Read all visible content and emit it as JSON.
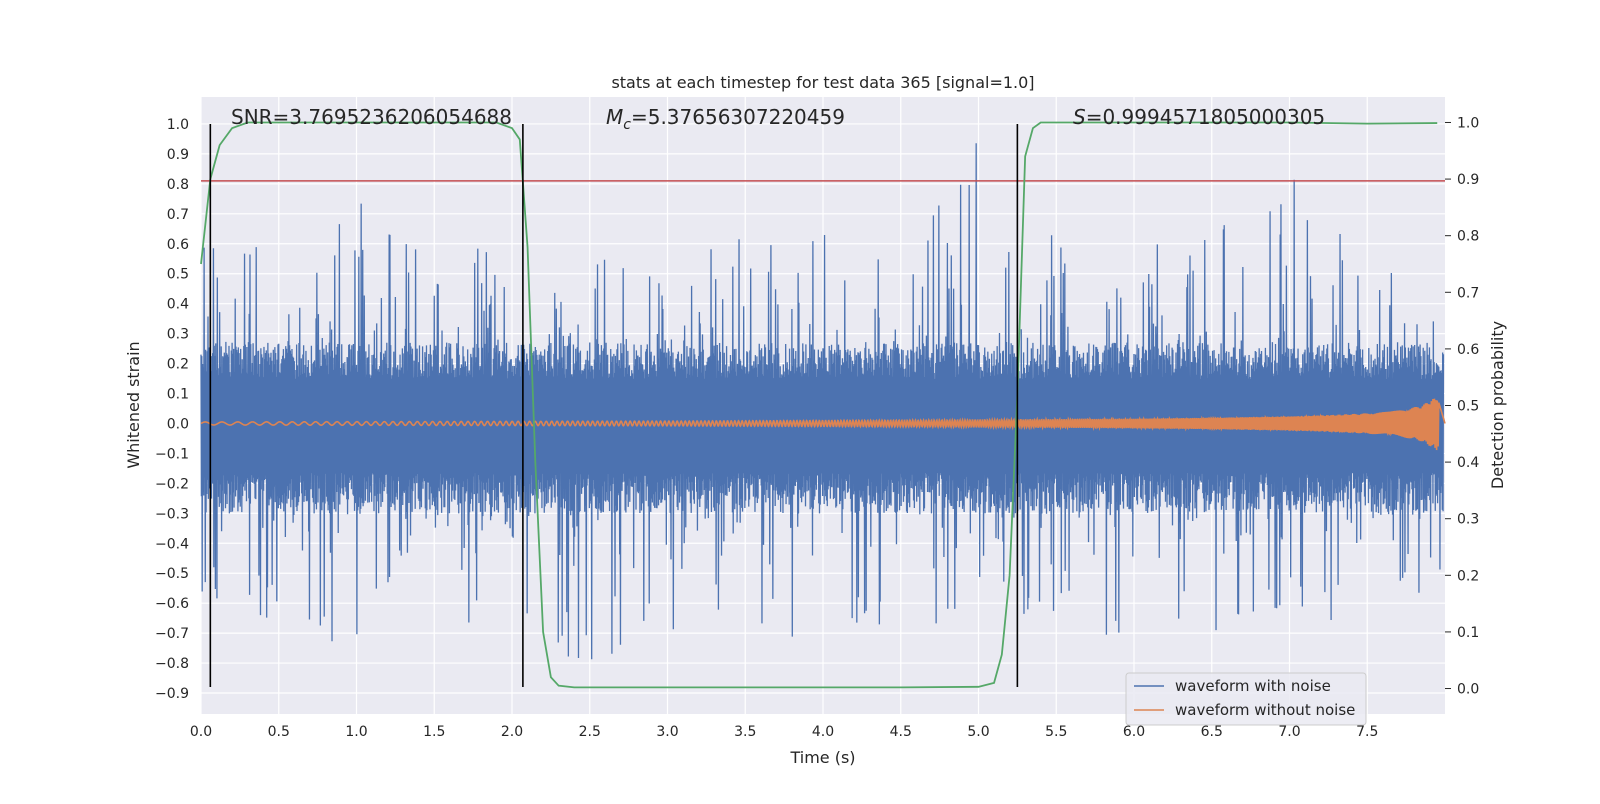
{
  "chart_data": {
    "type": "line",
    "title": "stats at each timestep for test data 365 [signal=1.0]",
    "xlabel": "Time (s)",
    "ylabel": "Whitened strain",
    "y2label": "Detection probability",
    "xlim": [
      0.0,
      8.0
    ],
    "ylim": [
      -0.97,
      1.09
    ],
    "y2lim": [
      -0.045,
      1.045
    ],
    "xticks": [
      "0.0",
      "0.5",
      "1.0",
      "1.5",
      "2.0",
      "2.5",
      "3.0",
      "3.5",
      "4.0",
      "4.5",
      "5.0",
      "5.5",
      "6.0",
      "6.5",
      "7.0",
      "7.5"
    ],
    "xtick_values": [
      0.0,
      0.5,
      1.0,
      1.5,
      2.0,
      2.5,
      3.0,
      3.5,
      4.0,
      4.5,
      5.0,
      5.5,
      6.0,
      6.5,
      7.0,
      7.5
    ],
    "yticks": [
      "1.0",
      "0.9",
      "0.8",
      "0.7",
      "0.6",
      "0.5",
      "0.4",
      "0.3",
      "0.2",
      "0.1",
      "0.0",
      "−0.1",
      "−0.2",
      "−0.3",
      "−0.4",
      "−0.5",
      "−0.6",
      "−0.7",
      "−0.8",
      "−0.9"
    ],
    "ytick_values": [
      1.0,
      0.9,
      0.8,
      0.7,
      0.6,
      0.5,
      0.4,
      0.3,
      0.2,
      0.1,
      0.0,
      -0.1,
      -0.2,
      -0.3,
      -0.4,
      -0.5,
      -0.6,
      -0.7,
      -0.8,
      -0.9
    ],
    "y2ticks": [
      "1.0",
      "0.9",
      "0.8",
      "0.7",
      "0.6",
      "0.5",
      "0.4",
      "0.3",
      "0.2",
      "0.1",
      "0.0"
    ],
    "y2tick_values": [
      1.0,
      0.9,
      0.8,
      0.7,
      0.6,
      0.5,
      0.4,
      0.3,
      0.2,
      0.1,
      0.0
    ],
    "annotations": {
      "snr": "SNR=3.7695236206054688",
      "mc_symbol": "M",
      "mc_sub": "c",
      "mc_value": "=5.37656307220459",
      "s_symbol": "S",
      "s_value": "=0.9994571805000305"
    },
    "threshold_y": 0.81,
    "vertical_lines_x": [
      0.06,
      2.07,
      5.25
    ],
    "vertical_line_y_range": [
      -0.88,
      1.0
    ],
    "noise_envelope": {
      "x": [
        0.0,
        0.25,
        0.5,
        0.75,
        1.0,
        1.25,
        1.5,
        1.75,
        2.0,
        2.25,
        2.5,
        2.75,
        3.0,
        3.25,
        3.5,
        3.75,
        4.0,
        4.25,
        4.5,
        4.75,
        5.0,
        5.25,
        5.5,
        5.75,
        6.0,
        6.25,
        6.5,
        6.75,
        7.0,
        7.25,
        7.5,
        7.75,
        8.0
      ],
      "upper": [
        0.65,
        0.7,
        0.6,
        0.6,
        0.75,
        0.62,
        0.6,
        0.58,
        0.62,
        0.6,
        0.62,
        0.55,
        0.55,
        0.6,
        0.8,
        0.7,
        0.7,
        0.72,
        0.55,
        1.0,
        0.95,
        0.6,
        0.65,
        0.6,
        0.62,
        0.7,
        0.7,
        0.75,
        0.89,
        0.65,
        0.62,
        0.6,
        0.6
      ],
      "lower": [
        -0.65,
        -0.77,
        -0.65,
        -0.77,
        -0.78,
        -0.7,
        -0.72,
        -0.7,
        -0.6,
        -0.8,
        -0.85,
        -0.75,
        -0.7,
        -0.75,
        -0.72,
        -0.75,
        -0.72,
        -0.68,
        -0.88,
        -0.7,
        -0.65,
        -0.65,
        -0.7,
        -0.8,
        -0.65,
        -0.75,
        -0.7,
        -0.68,
        -0.72,
        -0.7,
        -0.65,
        -0.6,
        -0.55
      ]
    },
    "clean_waveform": {
      "x": [
        0.0,
        1.0,
        2.0,
        3.0,
        4.0,
        5.0,
        5.5,
        6.0,
        6.5,
        7.0,
        7.25,
        7.5,
        7.65,
        7.75,
        7.85,
        7.9,
        7.95,
        8.0
      ],
      "amplitude": [
        0.005,
        0.006,
        0.007,
        0.008,
        0.01,
        0.012,
        0.014,
        0.016,
        0.019,
        0.024,
        0.028,
        0.034,
        0.04,
        0.048,
        0.06,
        0.075,
        0.09,
        0.0
      ]
    },
    "detection_probability": {
      "x": [
        0.0,
        0.06,
        0.12,
        0.2,
        0.3,
        0.4,
        0.6,
        1.0,
        1.5,
        1.9,
        2.0,
        2.05,
        2.1,
        2.15,
        2.2,
        2.25,
        2.3,
        2.4,
        3.0,
        4.0,
        4.5,
        5.0,
        5.1,
        5.15,
        5.2,
        5.25,
        5.3,
        5.35,
        5.4,
        5.5,
        6.0,
        7.0,
        7.5,
        7.95
      ],
      "y": [
        0.75,
        0.9,
        0.96,
        0.99,
        1.0,
        1.0,
        1.0,
        1.0,
        1.0,
        1.0,
        0.99,
        0.97,
        0.78,
        0.4,
        0.1,
        0.02,
        0.005,
        0.002,
        0.002,
        0.002,
        0.002,
        0.003,
        0.01,
        0.06,
        0.2,
        0.52,
        0.94,
        0.99,
        1.0,
        1.0,
        1.0,
        1.0,
        0.998,
        0.999
      ]
    },
    "legend": {
      "placement": "lower-right",
      "entries": [
        {
          "label": "waveform with noise",
          "color": "#4c72b0"
        },
        {
          "label": "waveform without noise",
          "color": "#dd8452"
        }
      ]
    },
    "colors": {
      "noisy": "#4c72b0",
      "clean": "#dd8452",
      "probability": "#55a868",
      "threshold": "#c44e52",
      "vline": "#000000",
      "plot_bg": "#eaeaf2",
      "grid": "#ffffff"
    },
    "grid": true
  }
}
